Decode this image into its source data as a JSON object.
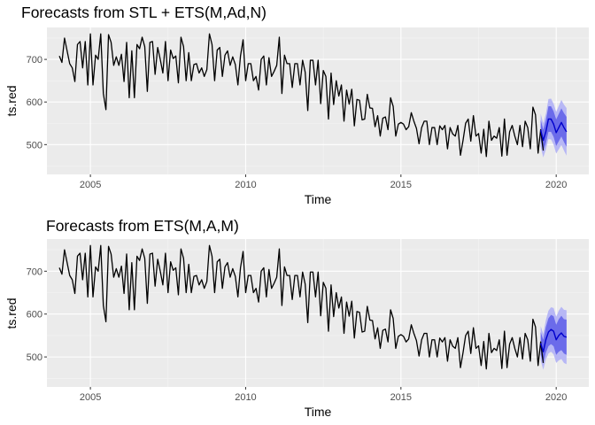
{
  "chart_data": [
    {
      "type": "line",
      "title": "Forecasts from STL +  ETS(M,Ad,N)",
      "xlabel": "Time",
      "ylabel": "ts.red",
      "xlim": [
        2003.6,
        2021.05
      ],
      "ylim": [
        430,
        775
      ],
      "x_ticks": [
        2005,
        2010,
        2015,
        2020
      ],
      "x_tick_labels": [
        "2005",
        "2010",
        "2015",
        "2020"
      ],
      "y_ticks": [
        500,
        600,
        700
      ],
      "y_tick_labels": [
        "500",
        "600",
        "700"
      ],
      "grid": true,
      "legend": "none",
      "colors": {
        "panel": "#ebebeb",
        "grid_major": "#ffffff",
        "grid_minor": "#f5f5f5",
        "history": "#000000",
        "forecast": "#0000cc",
        "pi80": "#6b6bea",
        "pi95": "#b7b7f5"
      },
      "history": {
        "start": 2004.0,
        "frequency": 12,
        "values": [
          708,
          693,
          750,
          720,
          690,
          680,
          648,
          735,
          742,
          680,
          742,
          640,
          760,
          640,
          710,
          700,
          760,
          620,
          582,
          758,
          740,
          686,
          706,
          686,
          712,
          648,
          740,
          610,
          720,
          610,
          735,
          725,
          752,
          730,
          625,
          740,
          742,
          665,
          728,
          700,
          668,
          742,
          650,
          722,
          702,
          708,
          645,
          752,
          730,
          650,
          716,
          650,
          688,
          690,
          668,
          680,
          660,
          676,
          760,
          735,
          650,
          722,
          728,
          660,
          710,
          720,
          686,
          706,
          688,
          640,
          708,
          746,
          650,
          690,
          690,
          650,
          660,
          628,
          700,
          708,
          640,
          704,
          660,
          672,
          686,
          752,
          620,
          710,
          690,
          690,
          634,
          690,
          690,
          640,
          698,
          670,
          580,
          698,
          698,
          640,
          698,
          596,
          674,
          660,
          560,
          668,
          594,
          650,
          614,
          640,
          555,
          628,
          595,
          630,
          544,
          606,
          604,
          558,
          560,
          618,
          586,
          585,
          542,
          568,
          520,
          562,
          565,
          535,
          610,
          590,
          520,
          548,
          552,
          548,
          535,
          542,
          575,
          555,
          538,
          502,
          540,
          555,
          555,
          500,
          540,
          540,
          500,
          544,
          535,
          545,
          490,
          540,
          525,
          520,
          545,
          475,
          510,
          550,
          560,
          508,
          568,
          520,
          526,
          480,
          536,
          472,
          555,
          510,
          520,
          515,
          540,
          473,
          560,
          475,
          530,
          545,
          520,
          500,
          545,
          495,
          555,
          540,
          490,
          588,
          570,
          480,
          535,
          486
        ]
      },
      "forecast": {
        "x": [
          2019.5,
          2019.5833,
          2019.6667,
          2019.75,
          2019.8333,
          2019.9167,
          2020.0,
          2020.0833,
          2020.1667,
          2020.25,
          2020.3333
        ],
        "mean": [
          534,
          510,
          530,
          560,
          560,
          548,
          528,
          540,
          552,
          540,
          530
        ],
        "lo80": [
          510,
          485,
          503,
          530,
          530,
          518,
          497,
          508,
          519,
          506,
          495
        ],
        "hi80": [
          558,
          535,
          557,
          590,
          590,
          578,
          559,
          572,
          585,
          574,
          565
        ],
        "lo95": [
          495,
          470,
          488,
          513,
          512,
          500,
          479,
          489,
          499,
          486,
          474
        ],
        "hi95": [
          573,
          550,
          572,
          607,
          608,
          596,
          577,
          591,
          605,
          594,
          586
        ]
      }
    },
    {
      "type": "line",
      "title": "Forecasts from ETS(M,A,M)",
      "xlabel": "Time",
      "ylabel": "ts.red",
      "xlim": [
        2003.6,
        2021.05
      ],
      "ylim": [
        430,
        775
      ],
      "x_ticks": [
        2005,
        2010,
        2015,
        2020
      ],
      "x_tick_labels": [
        "2005",
        "2010",
        "2015",
        "2020"
      ],
      "y_ticks": [
        500,
        600,
        700
      ],
      "y_tick_labels": [
        "500",
        "600",
        "700"
      ],
      "grid": true,
      "legend": "none",
      "colors": {
        "panel": "#ebebeb",
        "grid_major": "#ffffff",
        "grid_minor": "#f5f5f5",
        "history": "#000000",
        "forecast": "#0000cc",
        "pi80": "#6b6bea",
        "pi95": "#b7b7f5"
      },
      "history": {
        "start": 2004.0,
        "frequency": 12,
        "values": [
          708,
          693,
          750,
          720,
          690,
          680,
          648,
          735,
          742,
          680,
          742,
          640,
          760,
          640,
          710,
          700,
          760,
          620,
          582,
          758,
          740,
          686,
          706,
          686,
          712,
          648,
          740,
          610,
          720,
          610,
          735,
          725,
          752,
          730,
          625,
          740,
          742,
          665,
          728,
          700,
          668,
          742,
          650,
          722,
          702,
          708,
          645,
          752,
          730,
          650,
          716,
          650,
          688,
          690,
          668,
          680,
          660,
          676,
          760,
          735,
          650,
          722,
          728,
          660,
          710,
          720,
          686,
          706,
          688,
          640,
          708,
          746,
          650,
          690,
          690,
          650,
          660,
          628,
          700,
          708,
          640,
          704,
          660,
          672,
          686,
          752,
          620,
          710,
          690,
          690,
          634,
          690,
          690,
          640,
          698,
          670,
          580,
          698,
          698,
          640,
          698,
          596,
          674,
          660,
          560,
          668,
          594,
          650,
          614,
          640,
          555,
          628,
          595,
          630,
          544,
          606,
          604,
          558,
          560,
          618,
          586,
          585,
          542,
          568,
          520,
          562,
          565,
          535,
          610,
          590,
          520,
          548,
          552,
          548,
          535,
          542,
          575,
          555,
          538,
          502,
          540,
          555,
          555,
          500,
          540,
          540,
          500,
          544,
          535,
          545,
          490,
          540,
          525,
          520,
          545,
          475,
          510,
          550,
          560,
          508,
          568,
          520,
          526,
          480,
          536,
          472,
          555,
          510,
          520,
          515,
          540,
          473,
          560,
          475,
          530,
          545,
          520,
          500,
          545,
          495,
          555,
          540,
          490,
          588,
          570,
          480,
          535,
          486
        ]
      },
      "forecast": {
        "x": [
          2019.5,
          2019.5833,
          2019.6667,
          2019.75,
          2019.8333,
          2019.9167,
          2020.0,
          2020.0833,
          2020.1667,
          2020.25,
          2020.3333
        ],
        "mean": [
          532,
          512,
          540,
          558,
          564,
          560,
          540,
          550,
          556,
          548,
          546
        ],
        "lo80": [
          506,
          485,
          510,
          525,
          530,
          525,
          505,
          512,
          516,
          508,
          505
        ],
        "hi80": [
          558,
          540,
          570,
          590,
          598,
          595,
          575,
          588,
          596,
          588,
          587
        ],
        "lo95": [
          492,
          470,
          494,
          508,
          512,
          506,
          486,
          492,
          495,
          486,
          483
        ],
        "hi95": [
          572,
          554,
          586,
          608,
          616,
          614,
          594,
          608,
          617,
          610,
          609
        ]
      }
    }
  ]
}
